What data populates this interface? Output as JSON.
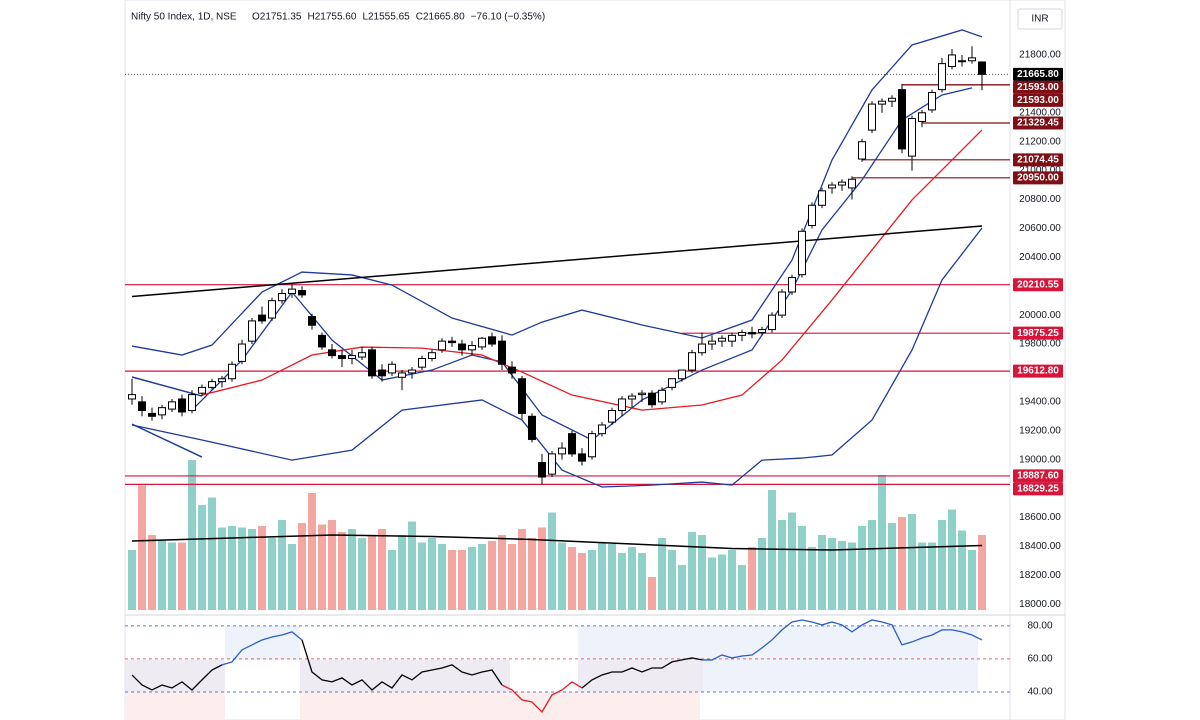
{
  "chart_data": {
    "type": "candlestick",
    "title": "Nifty 50 Index, 1D, NSE",
    "legend_items": [
      "O21751.35",
      "H21755.60",
      "L21555.65",
      "C21665.80",
      "−76.10 (−0.35%)"
    ],
    "currency": "INR",
    "ylim": [
      17960,
      22111
    ],
    "yticks": [
      {
        "value": 18000,
        "label": "18000.00"
      },
      {
        "value": 18200,
        "label": "18200.00"
      },
      {
        "value": 18400,
        "label": "18400.00"
      },
      {
        "value": 18600,
        "label": "18600.00"
      },
      {
        "value": 18800,
        "label": "18800.00"
      },
      {
        "value": 19000,
        "label": "19000.00"
      },
      {
        "value": 19200,
        "label": "19200.00"
      },
      {
        "value": 19400,
        "label": "19400.00"
      },
      {
        "value": 19600,
        "label": "19600.00"
      },
      {
        "value": 19800,
        "label": "19800.00"
      },
      {
        "value": 20000,
        "label": "20000.00"
      },
      {
        "value": 20200,
        "label": "20200.00"
      },
      {
        "value": 20400,
        "label": "20400.00"
      },
      {
        "value": 20600,
        "label": "20600.00"
      },
      {
        "value": 20800,
        "label": "20800.00"
      },
      {
        "value": 21000,
        "label": "21000.00"
      },
      {
        "value": 21200,
        "label": "21200.00"
      },
      {
        "value": 21400,
        "label": "21400.00"
      },
      {
        "value": 21600,
        "label": "21600.00"
      },
      {
        "value": 21800,
        "label": "21800.00"
      }
    ],
    "candles": [
      [
        19420,
        19560,
        19380,
        19450
      ],
      [
        19400,
        19440,
        19300,
        19340
      ],
      [
        19320,
        19360,
        19270,
        19300
      ],
      [
        19310,
        19380,
        19280,
        19360
      ],
      [
        19350,
        19420,
        19330,
        19400
      ],
      [
        19420,
        19450,
        19300,
        19330
      ],
      [
        19340,
        19480,
        19320,
        19450
      ],
      [
        19460,
        19520,
        19440,
        19500
      ],
      [
        19500,
        19560,
        19480,
        19540
      ],
      [
        19540,
        19580,
        19500,
        19560
      ],
      [
        19560,
        19680,
        19540,
        19660
      ],
      [
        19680,
        19830,
        19660,
        19800
      ],
      [
        19820,
        19980,
        19800,
        19960
      ],
      [
        20000,
        20060,
        19940,
        19960
      ],
      [
        19980,
        20120,
        19960,
        20100
      ],
      [
        20100,
        20180,
        20080,
        20150
      ],
      [
        20150,
        20220,
        20120,
        20180
      ],
      [
        20170,
        20200,
        20120,
        20140
      ],
      [
        19990,
        20010,
        19900,
        19930
      ],
      [
        19860,
        19880,
        19760,
        19780
      ],
      [
        19760,
        19800,
        19700,
        19720
      ],
      [
        19720,
        19760,
        19640,
        19700
      ],
      [
        19700,
        19760,
        19660,
        19720
      ],
      [
        19710,
        19780,
        19690,
        19740
      ],
      [
        19760,
        19780,
        19560,
        19580
      ],
      [
        19620,
        19660,
        19540,
        19580
      ],
      [
        19600,
        19680,
        19580,
        19660
      ],
      [
        19570,
        19620,
        19480,
        19600
      ],
      [
        19600,
        19640,
        19560,
        19620
      ],
      [
        19640,
        19720,
        19620,
        19700
      ],
      [
        19700,
        19760,
        19680,
        19740
      ],
      [
        19760,
        19840,
        19740,
        19820
      ],
      [
        19820,
        19850,
        19780,
        19810
      ],
      [
        19800,
        19830,
        19720,
        19760
      ],
      [
        19760,
        19820,
        19720,
        19790
      ],
      [
        19780,
        19850,
        19760,
        19840
      ],
      [
        19850,
        19880,
        19780,
        19800
      ],
      [
        19820,
        19860,
        19620,
        19660
      ],
      [
        19640,
        19680,
        19560,
        19600
      ],
      [
        19560,
        19580,
        19280,
        19320
      ],
      [
        19300,
        19320,
        19120,
        19140
      ],
      [
        18980,
        19040,
        18830,
        18880
      ],
      [
        18900,
        19060,
        18880,
        19040
      ],
      [
        19040,
        19120,
        19000,
        19080
      ],
      [
        19180,
        19200,
        19020,
        19040
      ],
      [
        19040,
        19080,
        18960,
        18990
      ],
      [
        19020,
        19200,
        19000,
        19180
      ],
      [
        19180,
        19260,
        19160,
        19240
      ],
      [
        19260,
        19360,
        19240,
        19340
      ],
      [
        19340,
        19440,
        19300,
        19420
      ],
      [
        19420,
        19460,
        19360,
        19440
      ],
      [
        19450,
        19480,
        19400,
        19460
      ],
      [
        19460,
        19480,
        19360,
        19380
      ],
      [
        19400,
        19500,
        19380,
        19480
      ],
      [
        19500,
        19560,
        19480,
        19560
      ],
      [
        19560,
        19620,
        19540,
        19620
      ],
      [
        19620,
        19760,
        19600,
        19740
      ],
      [
        19740,
        19880,
        19720,
        19800
      ],
      [
        19800,
        19860,
        19760,
        19820
      ],
      [
        19820,
        19860,
        19780,
        19840
      ],
      [
        19820,
        19880,
        19780,
        19860
      ],
      [
        19860,
        19900,
        19820,
        19880
      ],
      [
        19880,
        19920,
        19840,
        19870
      ],
      [
        19880,
        19920,
        19860,
        19900
      ],
      [
        19900,
        20020,
        19880,
        20000
      ],
      [
        20000,
        20180,
        19980,
        20160
      ],
      [
        20160,
        20280,
        20140,
        20260
      ],
      [
        20280,
        20600,
        20260,
        20580
      ],
      [
        20620,
        20780,
        20600,
        20760
      ],
      [
        20760,
        20880,
        20740,
        20860
      ],
      [
        20880,
        20920,
        20840,
        20900
      ],
      [
        20900,
        20940,
        20860,
        20920
      ],
      [
        20880,
        20960,
        20800,
        20940
      ],
      [
        21080,
        21220,
        21060,
        21200
      ],
      [
        21280,
        21480,
        21260,
        21460
      ],
      [
        21460,
        21500,
        21400,
        21480
      ],
      [
        21480,
        21520,
        21440,
        21500
      ],
      [
        21560,
        21600,
        21120,
        21150
      ],
      [
        21100,
        21380,
        21000,
        21360
      ],
      [
        21340,
        21420,
        21300,
        21400
      ],
      [
        21420,
        21560,
        21400,
        21540
      ],
      [
        21560,
        21780,
        21540,
        21740
      ],
      [
        21720,
        21840,
        21700,
        21800
      ],
      [
        21760,
        21800,
        21720,
        21760
      ],
      [
        21760,
        21860,
        21740,
        21780
      ],
      [
        21751.35,
        21755.6,
        21555.65,
        21665.8
      ]
    ],
    "up_color": "#ffffff",
    "down_color": "#000000",
    "overlays": [
      {
        "color": "#1e3a9a",
        "x": [
          0,
          5,
          8,
          13,
          17,
          22,
          26,
          32,
          38,
          41,
          45,
          51,
          57,
          62,
          66,
          70,
          74,
          78,
          83,
          85
        ],
        "values": [
          19786,
          19724,
          19793,
          20160,
          20298,
          20278,
          20208,
          19980,
          19862,
          19952,
          20035,
          19932,
          19842,
          19966,
          20381,
          21073,
          21558,
          21869,
          21973,
          21925
        ]
      },
      {
        "color": "#1e3a9a",
        "x": [
          6,
          11,
          16,
          20,
          25,
          30,
          34,
          37,
          41,
          46,
          51,
          57,
          62,
          66,
          69,
          73,
          77,
          81,
          84
        ],
        "values": [
          19343,
          19689,
          20160,
          19828,
          19551,
          19620,
          19724,
          19676,
          19309,
          19136,
          19413,
          19620,
          19759,
          20174,
          20589,
          20935,
          21350,
          21523,
          21572
        ]
      },
      {
        "color": "#1e3a9a",
        "x": [
          0,
          7,
          16,
          22,
          27,
          35,
          39,
          43,
          47,
          52,
          57,
          60,
          63,
          67,
          70,
          74,
          78,
          81,
          85
        ],
        "values": [
          19240,
          19136,
          18997,
          19066,
          19343,
          19413,
          19274,
          18928,
          18811,
          18824,
          18845,
          18824,
          18997,
          19011,
          19032,
          19274,
          19759,
          20243,
          20603
        ]
      },
      {
        "color": "#e31b23",
        "x": [
          7,
          13,
          18,
          23,
          29,
          35,
          39,
          44,
          51,
          57,
          61,
          65,
          70,
          74,
          78,
          82,
          85
        ],
        "values": [
          19447,
          19551,
          19724,
          19779,
          19772,
          19724,
          19606,
          19447,
          19343,
          19378,
          19447,
          19689,
          20105,
          20451,
          20797,
          21073,
          21281
        ]
      }
    ],
    "trendlines": [
      {
        "color": "#000000",
        "x": [
          0,
          85
        ],
        "values": [
          20129,
          20617
        ]
      },
      {
        "color": "#1e3a9a",
        "x": [
          0,
          7
        ],
        "values": [
          19572,
          19440
        ]
      },
      {
        "color": "#1e3a9a",
        "x": [
          0,
          7
        ],
        "values": [
          19246,
          19018
        ]
      }
    ],
    "last_price": {
      "value": 21665.8,
      "label": "21665.80",
      "color": "#000000"
    },
    "levels": [
      {
        "value": 21593,
        "label": "21593.00",
        "color": "#7f0f14",
        "x0": 77
      },
      {
        "value": 21593,
        "label": "21593.00",
        "color": "#7f0f14",
        "x0": 77
      },
      {
        "value": 21329.45,
        "label": "21329.45",
        "color": "#7f0f14",
        "x0": 79
      },
      {
        "value": 21074.45,
        "label": "21074.45",
        "color": "#7f0f14",
        "x0": 73
      },
      {
        "value": 20950,
        "label": "20950.00",
        "color": "#7f0f14",
        "x0": 72
      },
      {
        "value": 20210.55,
        "label": "20210.55",
        "color": "#d5163a",
        "x0": 0
      },
      {
        "value": 19875.25,
        "label": "19875.25",
        "color": "#d5163a",
        "x0": 55
      },
      {
        "value": 19612.8,
        "label": "19612.80",
        "color": "#d5163a",
        "x0": 0
      },
      {
        "value": 18887.6,
        "label": "18887.60",
        "color": "#d5163a",
        "x0": 0
      },
      {
        "value": 18829.25,
        "label": "18829.25",
        "color": "#d5163a",
        "x0": 0
      }
    ],
    "volume": {
      "vlim": [
        0,
        100
      ],
      "up_color": "#8fd1c9",
      "down_color": "#f3a6a2",
      "values": [
        40,
        83,
        50,
        47,
        45,
        45,
        100,
        70,
        75,
        55,
        56,
        55,
        54,
        56,
        48,
        60,
        44,
        58,
        78,
        57,
        60,
        52,
        54,
        48,
        50,
        54,
        40,
        50,
        59,
        45,
        48,
        44,
        40,
        40,
        42,
        44,
        46,
        50,
        44,
        54,
        48,
        55,
        65,
        45,
        42,
        38,
        40,
        45,
        44,
        38,
        42,
        38,
        22,
        48,
        40,
        30,
        52,
        50,
        35,
        37,
        40,
        30,
        42,
        48,
        80,
        60,
        65,
        56,
        42,
        50,
        48,
        46,
        45,
        56,
        60,
        90,
        58,
        62,
        64,
        45,
        45,
        60,
        67,
        53,
        40,
        50
      ],
      "ma": {
        "color": "#000000",
        "x": [
          0,
          10,
          20,
          30,
          40,
          50,
          60,
          70,
          80,
          85
        ],
        "values": [
          46,
          48,
          50,
          49,
          47,
          44,
          41,
          40,
          42,
          43
        ]
      }
    },
    "rsi": {
      "ylim": [
        23.0,
        84.8
      ],
      "yticks": [
        {
          "value": 40,
          "label": "40.00",
          "color": "#5b7bd5"
        },
        {
          "value": 60,
          "label": "60.00",
          "color": "#e06666"
        },
        {
          "value": 80,
          "label": "80.00",
          "color": "#5b7bd5"
        }
      ],
      "series": [
        {
          "color": "#000000",
          "x": [
            0,
            1,
            2,
            3,
            4,
            5,
            6,
            7,
            8,
            9
          ],
          "values": [
            50.3,
            44.2,
            41.2,
            44.2,
            42.4,
            46.1,
            41.2,
            47.3,
            53.3,
            56.4
          ]
        },
        {
          "color": "#2b5cc8",
          "x": [
            9,
            10,
            11,
            12,
            13,
            14,
            15,
            16,
            17
          ],
          "values": [
            56.4,
            58.2,
            65.5,
            68.5,
            71.5,
            73.3,
            74.5,
            76.4,
            71.5
          ]
        },
        {
          "color": "#000000",
          "x": [
            17,
            18,
            19,
            20,
            21,
            22,
            23,
            24,
            25,
            26,
            27,
            28,
            29,
            30,
            31,
            32,
            33,
            34,
            35,
            36,
            37
          ],
          "values": [
            71.5,
            52.1,
            47.3,
            46.1,
            48.5,
            44.2,
            47.3,
            41.2,
            46.1,
            42.4,
            50.3,
            47.3,
            52.1,
            53.3,
            54.5,
            56.4,
            52.1,
            50.3,
            52.1,
            53.3,
            44.2
          ]
        },
        {
          "color": "#e31b23",
          "x": [
            37,
            38,
            39,
            40,
            41,
            42,
            43,
            44,
            45
          ],
          "values": [
            44.2,
            41.2,
            35.2,
            33.9,
            27.9,
            38.2,
            41.2,
            46.1,
            42.4
          ]
        },
        {
          "color": "#000000",
          "x": [
            45,
            46,
            47,
            48,
            49,
            50,
            51,
            52,
            53,
            54,
            55,
            56,
            57
          ],
          "values": [
            42.4,
            47.3,
            50.3,
            52.1,
            52.1,
            54.5,
            52.1,
            54.5,
            54.5,
            58.2,
            59.4,
            60.6,
            59.4
          ]
        },
        {
          "color": "#2b5cc8",
          "x": [
            57,
            58,
            59,
            60,
            61,
            62,
            63,
            64,
            65,
            66,
            67,
            68,
            69,
            70,
            71,
            72,
            73,
            74,
            75,
            76,
            77,
            78,
            79,
            80,
            81,
            82,
            83,
            84,
            85
          ],
          "values": [
            59.4,
            59.4,
            62.4,
            60.6,
            61.8,
            62.4,
            66.7,
            71.5,
            77.6,
            82.4,
            83.6,
            82.4,
            80.6,
            82.4,
            80.6,
            76.4,
            80.6,
            83.6,
            82.4,
            80.6,
            68.5,
            70.3,
            72.7,
            74.5,
            77.6,
            77.6,
            76.4,
            74.5,
            71.5
          ]
        }
      ]
    }
  }
}
